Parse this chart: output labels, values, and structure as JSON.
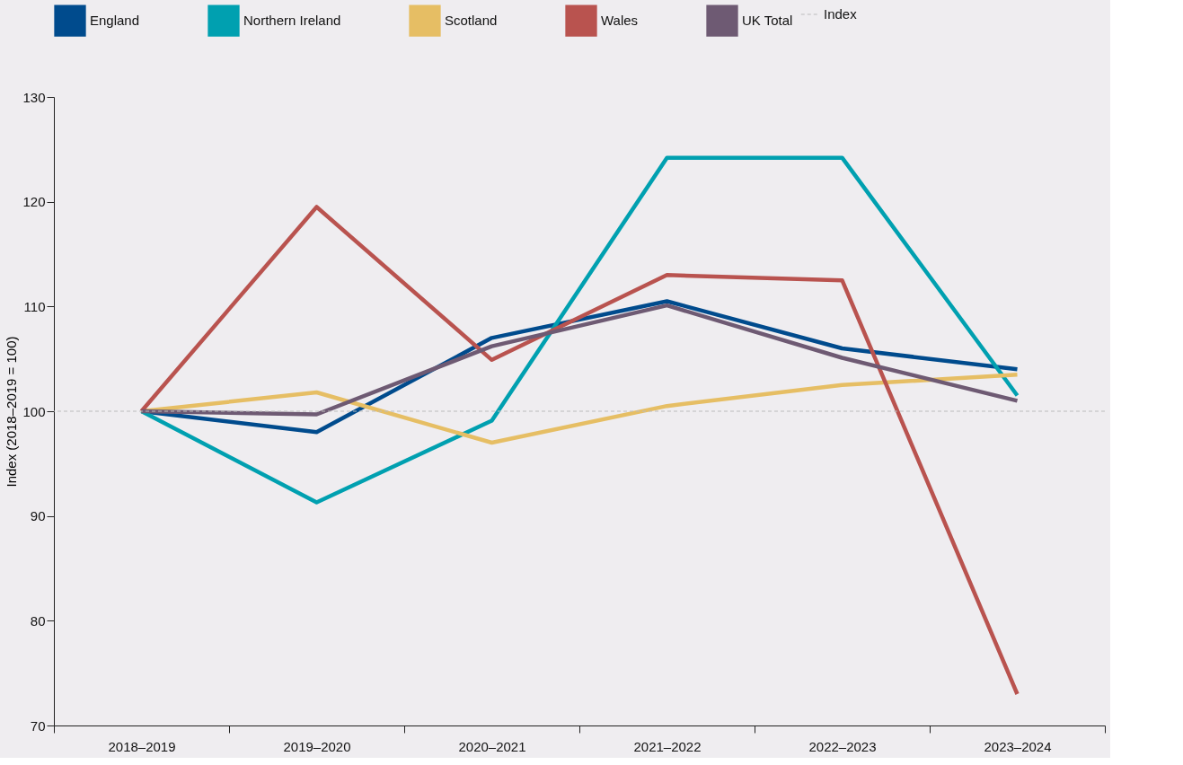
{
  "chart_data": {
    "type": "line",
    "ylabel": "Index (2018–2019 = 100)",
    "categories": [
      "2018–2019",
      "2019–2020",
      "2020–2021",
      "2021–2022",
      "2022–2023",
      "2023–2024"
    ],
    "series": [
      {
        "name": "England",
        "color": "#004b8d",
        "values": [
          100,
          98.0,
          107.0,
          110.5,
          106.0,
          104.0
        ]
      },
      {
        "name": "Northern Ireland",
        "color": "#00a0b0",
        "values": [
          100,
          91.3,
          99.1,
          124.2,
          124.2,
          101.5
        ]
      },
      {
        "name": "Scotland",
        "color": "#e6be64",
        "values": [
          100,
          101.8,
          97.0,
          100.5,
          102.5,
          103.5
        ]
      },
      {
        "name": "Wales",
        "color": "#b9534f",
        "values": [
          100,
          119.5,
          104.9,
          113.0,
          112.5,
          73.0
        ]
      },
      {
        "name": "UK Total",
        "color": "#6e5a73",
        "values": [
          100,
          99.7,
          106.2,
          110.1,
          105.1,
          101.0
        ]
      }
    ],
    "ylim": [
      70,
      130
    ],
    "yticks": [
      70,
      80,
      90,
      100,
      110,
      120,
      130
    ],
    "ref_lines": [
      {
        "axis": "y",
        "value": 100,
        "label": "Index",
        "color": "#bbbbbb",
        "line_style": "dashed"
      }
    ],
    "grid": false,
    "legend": "top",
    "marker": "none",
    "line_style": "solid"
  }
}
